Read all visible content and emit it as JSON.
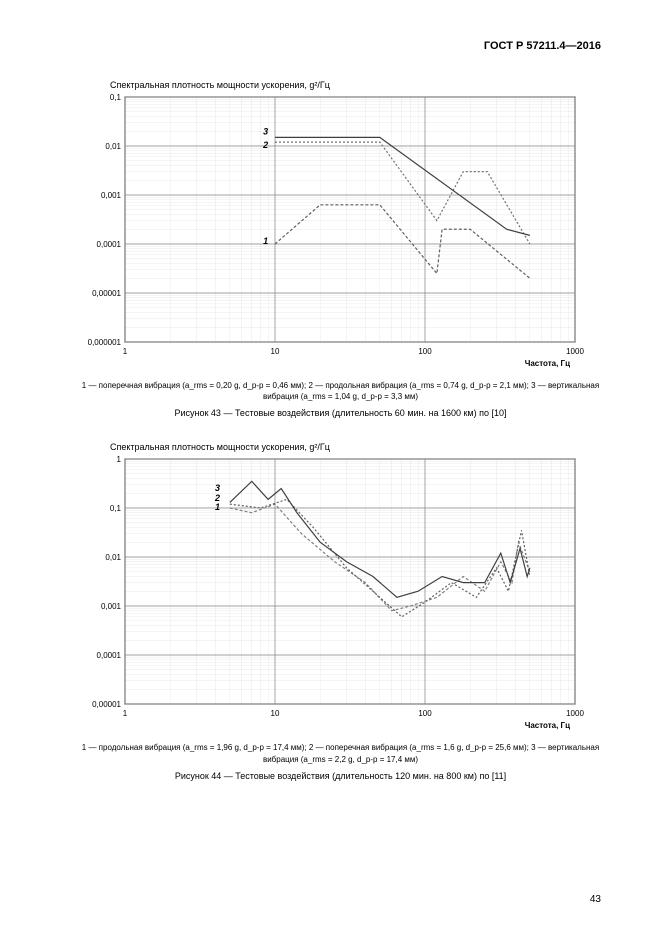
{
  "doc_header": "ГОСТ Р 57211.4—2016",
  "page_number": "43",
  "chart43": {
    "type": "line",
    "y_title": "Спектральная плотность мощности ускорения, g²/Гц",
    "x_label": "Частота, Гц",
    "x_scale": "log",
    "y_scale": "log",
    "xlim": [
      1,
      1000
    ],
    "ylim": [
      1e-06,
      0.1
    ],
    "x_ticks": [
      1,
      10,
      100,
      1000
    ],
    "x_tick_labels": [
      "1",
      "10",
      "100",
      "1000"
    ],
    "y_ticks": [
      1e-06,
      1e-05,
      0.0001,
      0.001,
      0.01,
      0.1
    ],
    "y_tick_labels": [
      "0,000001",
      "0,00001",
      "0,0001",
      "0,001",
      "0,01",
      "0,1"
    ],
    "plot_fontsize": 8,
    "series_label_fontsize": 9,
    "grid_color": "#808080",
    "background_color": "#ffffff",
    "axis_color": "#000000",
    "line_width": 1.2,
    "series": [
      {
        "label": "1",
        "color": "#606060",
        "dash": "3,2",
        "points": [
          [
            10,
            0.0001
          ],
          [
            20,
            0.00063
          ],
          [
            50,
            0.00063
          ],
          [
            120,
            2.5e-05
          ],
          [
            130,
            0.0002
          ],
          [
            200,
            0.0002
          ],
          [
            500,
            2e-05
          ]
        ]
      },
      {
        "label": "2",
        "color": "#707070",
        "dash": "2,2",
        "points": [
          [
            10,
            0.012
          ],
          [
            50,
            0.012
          ],
          [
            120,
            0.0003
          ],
          [
            180,
            0.003
          ],
          [
            260,
            0.003
          ],
          [
            500,
            0.0001
          ]
        ]
      },
      {
        "label": "3",
        "color": "#404040",
        "dash": "none",
        "points": [
          [
            10,
            0.015
          ],
          [
            50,
            0.015
          ],
          [
            350,
            0.0002
          ],
          [
            500,
            0.00015
          ]
        ]
      }
    ],
    "series_markers": [
      {
        "label": "1",
        "x": 9,
        "y": 0.0001
      },
      {
        "label": "2",
        "x": 9,
        "y": 0.009
      },
      {
        "label": "3",
        "x": 9,
        "y": 0.017
      }
    ],
    "legend_text": "1 — поперечная вибрация (a_rms = 0,20 g, d_p-p = 0,46 мм); 2 — продольная вибрация (a_rms = 0,74 g, d_p-p = 2,1 мм);\n3 — вертикальная вибрация (a_rms = 1,04 g, d_p-p = 3,3 мм)",
    "caption": "Рисунок 43 — Тестовые воздействия (длительность 60 мин. на 1600 км) по [10]"
  },
  "chart44": {
    "type": "line",
    "y_title": "Спектральная плотность мощности ускорения, g²/Гц",
    "x_label": "Частота, Гц",
    "x_scale": "log",
    "y_scale": "log",
    "xlim": [
      1,
      1000
    ],
    "ylim": [
      1e-05,
      1
    ],
    "x_ticks": [
      1,
      10,
      100,
      1000
    ],
    "x_tick_labels": [
      "1",
      "10",
      "100",
      "1000"
    ],
    "y_ticks": [
      1e-05,
      0.0001,
      0.001,
      0.01,
      0.1,
      1
    ],
    "y_tick_labels": [
      "0,00001",
      "0,0001",
      "0,001",
      "0,01",
      "0,1",
      "1"
    ],
    "plot_fontsize": 8,
    "series_label_fontsize": 9,
    "grid_color": "#808080",
    "background_color": "#ffffff",
    "axis_color": "#000000",
    "line_width": 1.2,
    "series": [
      {
        "label": "1",
        "color": "#808080",
        "dash": "3,2",
        "points": [
          [
            5,
            0.1
          ],
          [
            7,
            0.08
          ],
          [
            10,
            0.12
          ],
          [
            15,
            0.03
          ],
          [
            25,
            0.008
          ],
          [
            40,
            0.003
          ],
          [
            60,
            0.0008
          ],
          [
            80,
            0.001
          ],
          [
            120,
            0.0015
          ],
          [
            180,
            0.004
          ],
          [
            250,
            0.002
          ],
          [
            320,
            0.008
          ],
          [
            380,
            0.003
          ],
          [
            420,
            0.02
          ],
          [
            500,
            0.005
          ]
        ]
      },
      {
        "label": "2",
        "color": "#606060",
        "dash": "2,2",
        "points": [
          [
            5,
            0.12
          ],
          [
            8,
            0.1
          ],
          [
            12,
            0.15
          ],
          [
            18,
            0.04
          ],
          [
            30,
            0.006
          ],
          [
            45,
            0.002
          ],
          [
            70,
            0.0006
          ],
          [
            100,
            0.0012
          ],
          [
            150,
            0.003
          ],
          [
            220,
            0.0015
          ],
          [
            300,
            0.006
          ],
          [
            360,
            0.002
          ],
          [
            440,
            0.035
          ],
          [
            500,
            0.004
          ]
        ]
      },
      {
        "label": "3",
        "color": "#404040",
        "dash": "none",
        "points": [
          [
            5,
            0.13
          ],
          [
            7,
            0.35
          ],
          [
            9,
            0.15
          ],
          [
            11,
            0.25
          ],
          [
            14,
            0.08
          ],
          [
            20,
            0.02
          ],
          [
            30,
            0.008
          ],
          [
            45,
            0.004
          ],
          [
            65,
            0.0015
          ],
          [
            90,
            0.002
          ],
          [
            130,
            0.004
          ],
          [
            180,
            0.003
          ],
          [
            250,
            0.003
          ],
          [
            320,
            0.012
          ],
          [
            370,
            0.003
          ],
          [
            430,
            0.015
          ],
          [
            480,
            0.004
          ],
          [
            500,
            0.006
          ]
        ]
      }
    ],
    "series_markers": [
      {
        "label": "1",
        "x": 4.3,
        "y": 0.09
      },
      {
        "label": "2",
        "x": 4.3,
        "y": 0.14
      },
      {
        "label": "3",
        "x": 4.3,
        "y": 0.22
      }
    ],
    "legend_text": "1 — продольная вибрация (a_rms = 1,96 g, d_p-p = 17,4 мм); 2 — поперечная вибрация (a_rms = 1,6 g, d_p-p = 25,6 мм);\n3 — вертикальная вибрация (a_rms = 2,2 g, d_p-p = 17,4 мм)",
    "caption": "Рисунок 44 — Тестовые воздействия (длительность 120 мин. на 800 км) по [11]"
  }
}
